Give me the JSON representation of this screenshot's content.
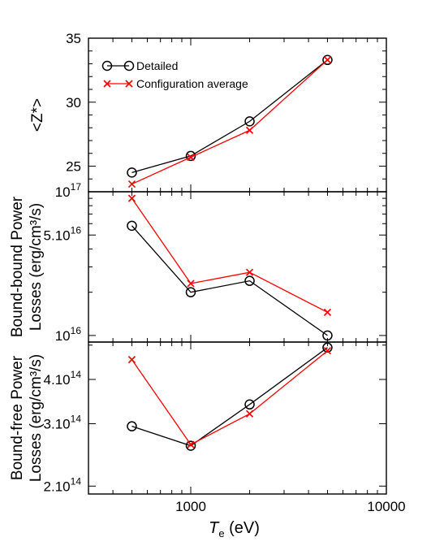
{
  "chart_data": [
    {
      "type": "line",
      "ylabel": "<Z*>",
      "y_scale": "linear",
      "ylim": [
        23,
        35
      ],
      "y_ticks": [
        25,
        30,
        35
      ],
      "y_tick_labels": [
        "25",
        "30",
        "35"
      ],
      "legend_position": "top-left",
      "series": [
        {
          "name": "Detailed",
          "color": "#000000",
          "marker": "circle",
          "x": [
            500,
            1000,
            2000,
            5000
          ],
          "values": [
            24.5,
            25.8,
            28.5,
            33.3
          ]
        },
        {
          "name": "Configuration average",
          "color": "#ff0000",
          "marker": "x",
          "x": [
            500,
            1000,
            2000,
            5000
          ],
          "values": [
            23.6,
            25.7,
            27.8,
            33.3
          ]
        }
      ]
    },
    {
      "type": "line",
      "ylabel": [
        "Bound-bound Power",
        "Losses (erg/cm³/s)"
      ],
      "y_scale": "log",
      "ylim": [
        9000000000000000.0,
        1e+17
      ],
      "y_ticks": [
        1e+16,
        5e+16,
        1e+17
      ],
      "y_tick_labels": [
        {
          "base": "10",
          "exp": "16"
        },
        {
          "base": "5.10",
          "exp": "16"
        },
        {
          "base": "10",
          "exp": "17"
        }
      ],
      "series": [
        {
          "name": "Detailed",
          "color": "#000000",
          "marker": "circle",
          "x": [
            500,
            1000,
            2000,
            5000
          ],
          "values": [
            5.8e+16,
            2e+16,
            2.4e+16,
            1e+16
          ]
        },
        {
          "name": "Configuration average",
          "color": "#ff0000",
          "marker": "x",
          "x": [
            500,
            1000,
            2000,
            5000
          ],
          "values": [
            9e+16,
            2.3e+16,
            2.75e+16,
            1.45e+16
          ]
        }
      ]
    },
    {
      "type": "line",
      "ylabel": [
        "Bound-free Power",
        "Losses (erg/cm³/s)"
      ],
      "y_scale": "log",
      "ylim": [
        190000000000000.0,
        510000000000000.0
      ],
      "y_ticks": [
        200000000000000.0,
        300000000000000.0,
        400000000000000.0
      ],
      "y_tick_labels": [
        {
          "base": "2.10",
          "exp": "14"
        },
        {
          "base": "3.10",
          "exp": "14"
        },
        {
          "base": "4.10",
          "exp": "14"
        }
      ],
      "series": [
        {
          "name": "Detailed",
          "color": "#000000",
          "marker": "circle",
          "x": [
            500,
            1000,
            2000,
            5000
          ],
          "values": [
            295000000000000.0,
            260000000000000.0,
            340000000000000.0,
            492000000000000.0
          ]
        },
        {
          "name": "Configuration average",
          "color": "#ff0000",
          "marker": "x",
          "x": [
            500,
            1000,
            2000,
            5000
          ],
          "values": [
            455000000000000.0,
            262000000000000.0,
            320000000000000.0,
            482000000000000.0
          ]
        }
      ]
    }
  ],
  "x_axis": {
    "label_symbol": "T",
    "label_subscript": "e",
    "label_unit": "(eV)",
    "scale": "log",
    "xlim": [
      300,
      10000
    ],
    "ticks": [
      1000,
      10000
    ],
    "tick_labels": [
      "1000",
      "10000"
    ]
  }
}
